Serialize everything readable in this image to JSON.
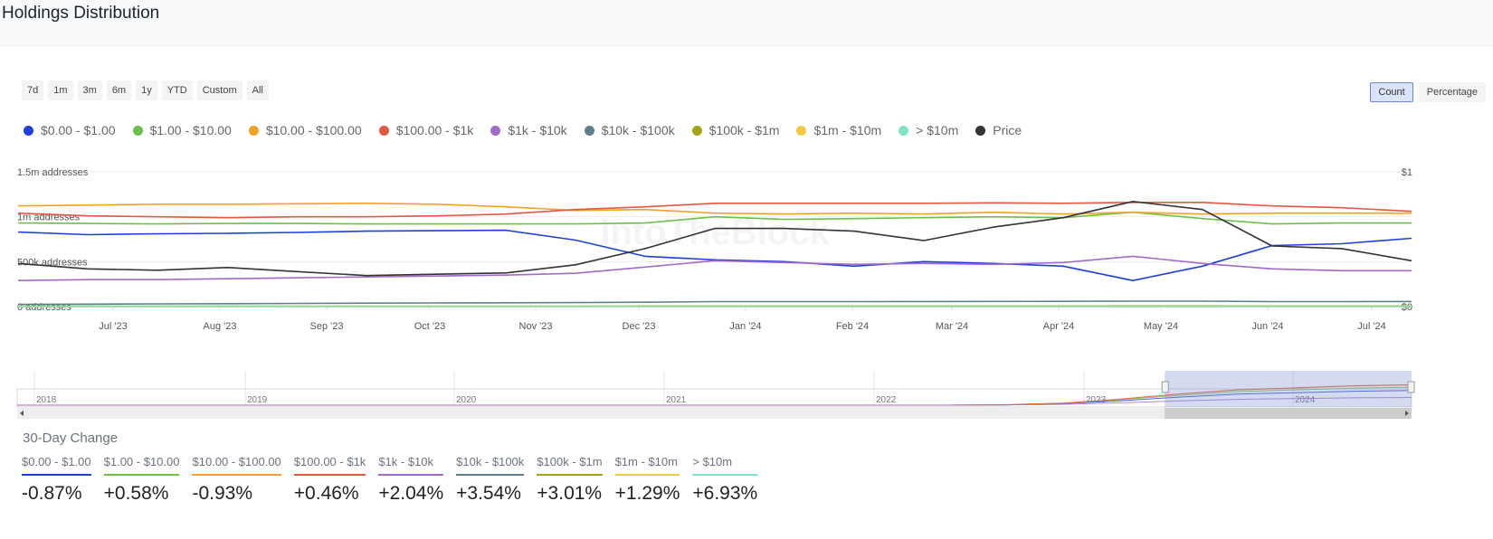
{
  "header": {
    "title": "Holdings Distribution"
  },
  "range_buttons": [
    "7d",
    "1m",
    "3m",
    "6m",
    "1y",
    "YTD",
    "Custom",
    "All"
  ],
  "mode_buttons": {
    "count": "Count",
    "percentage": "Percentage",
    "active": "count"
  },
  "legend": [
    {
      "label": "$0.00 - $1.00",
      "color": "#1f3fdc"
    },
    {
      "label": "$1.00 - $10.00",
      "color": "#6cc04a"
    },
    {
      "label": "$10.00 - $100.00",
      "color": "#f2a227"
    },
    {
      "label": "$100.00 - $1k",
      "color": "#e5573f"
    },
    {
      "label": "$1k - $10k",
      "color": "#a26bc9"
    },
    {
      "label": "$10k - $100k",
      "color": "#5f7f8f"
    },
    {
      "label": "$100k - $1m",
      "color": "#a5a419"
    },
    {
      "label": "$1m - $10m",
      "color": "#f5c842"
    },
    {
      "label": "> $10m",
      "color": "#7de3c0"
    },
    {
      "label": "Price",
      "color": "#333333"
    }
  ],
  "chart_data": {
    "type": "line",
    "title": "Holdings Distribution",
    "y_left_ticks": [
      "1.5m addresses",
      "1m addresses",
      "500k addresses",
      "0 addresses"
    ],
    "y_right_ticks": [
      "$1",
      "$0"
    ],
    "ylim_left": [
      0,
      1500000
    ],
    "ylim_right": [
      0,
      1
    ],
    "x_ticks": [
      "Jul '23",
      "Aug '23",
      "Sep '23",
      "Oct '23",
      "Nov '23",
      "Dec '23",
      "Jan '24",
      "Feb '24",
      "Mar '24",
      "Apr '24",
      "May '24",
      "Jun '24",
      "Jul '24"
    ],
    "x_range": [
      "2023-06-03",
      "2024-07-18"
    ],
    "watermark": "IntoTheBlock",
    "series_x": [
      0,
      0.05,
      0.1,
      0.15,
      0.2,
      0.25,
      0.3,
      0.35,
      0.4,
      0.45,
      0.5,
      0.55,
      0.6,
      0.65,
      0.7,
      0.75,
      0.8,
      0.85,
      0.9,
      0.95,
      1.0
    ],
    "series": [
      {
        "name": "$0.00 - $1.00",
        "color": "#1f3fdc",
        "values": [
          830000,
          800000,
          810000,
          815000,
          825000,
          840000,
          845000,
          850000,
          740000,
          560000,
          520000,
          500000,
          450000,
          500000,
          480000,
          450000,
          290000,
          450000,
          680000,
          700000,
          760000
        ]
      },
      {
        "name": "$1.00 - $10.00",
        "color": "#6cc04a",
        "values": [
          930000,
          925000,
          920000,
          925000,
          925000,
          920000,
          920000,
          920000,
          920000,
          930000,
          1000000,
          970000,
          980000,
          990000,
          1000000,
          990000,
          1050000,
          980000,
          920000,
          930000,
          930000
        ]
      },
      {
        "name": "$10.00 - $100.00",
        "color": "#f2a227",
        "values": [
          1120000,
          1130000,
          1140000,
          1140000,
          1145000,
          1150000,
          1140000,
          1110000,
          1070000,
          1080000,
          1040000,
          1030000,
          1040000,
          1030000,
          1050000,
          1030000,
          1050000,
          1030000,
          1040000,
          1040000,
          1040000
        ]
      },
      {
        "name": "$100.00 - $1k",
        "color": "#e5573f",
        "values": [
          1040000,
          1010000,
          1000000,
          990000,
          1000000,
          1000000,
          1010000,
          1030000,
          1080000,
          1110000,
          1150000,
          1150000,
          1150000,
          1150000,
          1155000,
          1150000,
          1160000,
          1160000,
          1120000,
          1100000,
          1060000
        ]
      },
      {
        "name": "$1k - $10k",
        "color": "#a26bc9",
        "values": [
          290000,
          300000,
          300000,
          310000,
          320000,
          330000,
          340000,
          350000,
          370000,
          440000,
          510000,
          490000,
          470000,
          480000,
          470000,
          490000,
          560000,
          480000,
          420000,
          400000,
          400000
        ]
      },
      {
        "name": "$10k - $100k",
        "color": "#5f7f8f",
        "values": [
          25000,
          27000,
          30000,
          32000,
          35000,
          38000,
          40000,
          42000,
          44000,
          48000,
          55000,
          55000,
          55000,
          56000,
          57000,
          58000,
          60000,
          60000,
          55000,
          55000,
          56000
        ]
      },
      {
        "name": "$100k - $1m",
        "color": "#a5a419",
        "values": [
          5000,
          5000,
          5000,
          5000,
          5000,
          5000,
          5000,
          5000,
          5000,
          6000,
          6000,
          6000,
          6000,
          6000,
          6000,
          6000,
          7000,
          7000,
          6000,
          6000,
          6000
        ]
      },
      {
        "name": "$1m - $10m",
        "color": "#f5c842",
        "values": [
          1000,
          1000,
          1000,
          1000,
          1000,
          1000,
          1000,
          1000,
          1000,
          1000,
          1000,
          1000,
          1000,
          1000,
          1000,
          1000,
          1000,
          1000,
          1000,
          1000,
          1000
        ]
      },
      {
        "name": "> $10m",
        "color": "#7de3c0",
        "values": [
          200,
          200,
          200,
          200,
          200,
          200,
          200,
          200,
          200,
          200,
          200,
          200,
          200,
          200,
          200,
          200,
          200,
          200,
          200,
          200,
          200
        ]
      },
      {
        "name": "Price",
        "color": "#333333",
        "axis": "right",
        "values": [
          0.32,
          0.28,
          0.27,
          0.29,
          0.26,
          0.23,
          0.24,
          0.25,
          0.31,
          0.43,
          0.58,
          0.58,
          0.56,
          0.49,
          0.59,
          0.66,
          0.78,
          0.72,
          0.45,
          0.43,
          0.34
        ]
      }
    ]
  },
  "navigator": {
    "year_labels": [
      "2018",
      "2019",
      "2020",
      "2021",
      "2022",
      "2023",
      "2024"
    ],
    "selected_from": 0.823,
    "selected_to": 1.0
  },
  "changes": {
    "title": "30-Day Change",
    "items": [
      {
        "label": "$0.00 - $1.00",
        "value": "-0.87%",
        "color": "#1f3fdc"
      },
      {
        "label": "$1.00 - $10.00",
        "value": "+0.58%",
        "color": "#6cc04a"
      },
      {
        "label": "$10.00 - $100.00",
        "value": "-0.93%",
        "color": "#f2a227"
      },
      {
        "label": "$100.00 - $1k",
        "value": "+0.46%",
        "color": "#e5573f"
      },
      {
        "label": "$1k - $10k",
        "value": "+2.04%",
        "color": "#a26bc9"
      },
      {
        "label": "$10k - $100k",
        "value": "+3.54%",
        "color": "#5f7f8f"
      },
      {
        "label": "$100k - $1m",
        "value": "+3.01%",
        "color": "#a5a419"
      },
      {
        "label": "$1m - $10m",
        "value": "+1.29%",
        "color": "#f5c842"
      },
      {
        "label": "> $10m",
        "value": "+6.93%",
        "color": "#7de3c0"
      }
    ]
  }
}
